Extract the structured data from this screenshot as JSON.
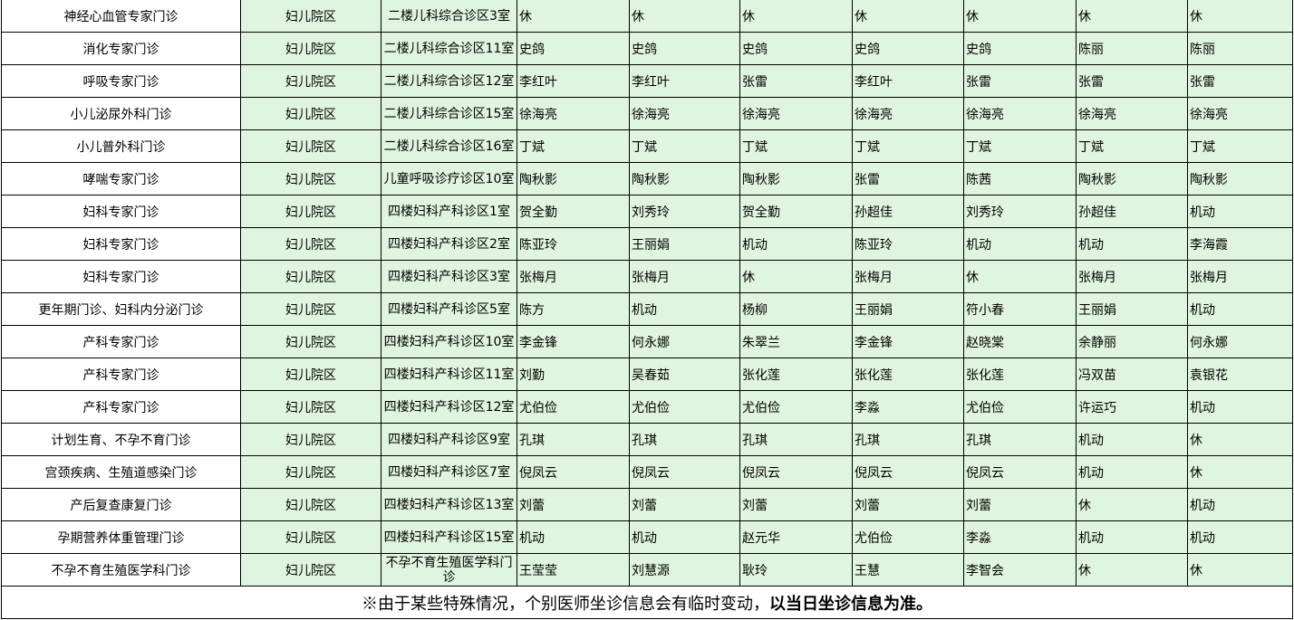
{
  "rows": [
    {
      "dept": "神经心血管专家门诊",
      "campus": "妇儿院区",
      "location": "二楼儿科综合诊区3室",
      "doctors": [
        "休",
        "休",
        "休",
        "休",
        "休",
        "休",
        "休"
      ]
    },
    {
      "dept": "消化专家门诊",
      "campus": "妇儿院区",
      "location": "二楼儿科综合诊区11室",
      "doctors": [
        "史鸽",
        "史鸽",
        "史鸽",
        "史鸽",
        "史鸽",
        "陈丽",
        "陈丽"
      ]
    },
    {
      "dept": "呼吸专家门诊",
      "campus": "妇儿院区",
      "location": "二楼儿科综合诊区12室",
      "doctors": [
        "李红叶",
        "李红叶",
        "张雷",
        "李红叶",
        "张雷",
        "张雷",
        "张雷"
      ]
    },
    {
      "dept": "小儿泌尿外科门诊",
      "campus": "妇儿院区",
      "location": "二楼儿科综合诊区15室",
      "doctors": [
        "徐海亮",
        "徐海亮",
        "徐海亮",
        "徐海亮",
        "徐海亮",
        "徐海亮",
        "徐海亮"
      ]
    },
    {
      "dept": "小儿普外科门诊",
      "campus": "妇儿院区",
      "location": "二楼儿科综合诊区16室",
      "doctors": [
        "丁斌",
        "丁斌",
        "丁斌",
        "丁斌",
        "丁斌",
        "丁斌",
        "丁斌"
      ]
    },
    {
      "dept": "哮喘专家门诊",
      "campus": "妇儿院区",
      "location": "儿童呼吸诊疗诊区10室",
      "doctors": [
        "陶秋影",
        "陶秋影",
        "陶秋影",
        "张雷",
        "陈茜",
        "陶秋影",
        "陶秋影"
      ]
    },
    {
      "dept": "妇科专家门诊",
      "campus": "妇儿院区",
      "location": "四楼妇科产科诊区1室",
      "doctors": [
        "贺全勤",
        "刘秀玲",
        "贺全勤",
        "孙超佳",
        "刘秀玲",
        "孙超佳",
        "机动"
      ]
    },
    {
      "dept": "妇科专家门诊",
      "campus": "妇儿院区",
      "location": "四楼妇科产科诊区2室",
      "doctors": [
        "陈亚玲",
        "王丽娟",
        "机动",
        "陈亚玲",
        "机动",
        "机动",
        "李海霞"
      ]
    },
    {
      "dept": "妇科专家门诊",
      "campus": "妇儿院区",
      "location": "四楼妇科产科诊区3室",
      "doctors": [
        "张梅月",
        "张梅月",
        "休",
        "张梅月",
        "休",
        "张梅月",
        "张梅月"
      ]
    },
    {
      "dept": "更年期门诊、妇科内分泌门诊",
      "campus": "妇儿院区",
      "location": "四楼妇科产科诊区5室",
      "doctors": [
        "陈方",
        "机动",
        "杨柳",
        "王丽娟",
        "符小春",
        "王丽娟",
        "机动"
      ]
    },
    {
      "dept": "产科专家门诊",
      "campus": "妇儿院区",
      "location": "四楼妇科产科诊区10室",
      "doctors": [
        "李金锋",
        "何永娜",
        "朱翠兰",
        "李金锋",
        "赵晓棠",
        "余静丽",
        "何永娜"
      ]
    },
    {
      "dept": "产科专家门诊",
      "campus": "妇儿院区",
      "location": "四楼妇科产科诊区11室",
      "doctors": [
        "刘勤",
        "吴春茹",
        "张化莲",
        "张化莲",
        "张化莲",
        "冯双苗",
        "袁银花"
      ]
    },
    {
      "dept": "产科专家门诊",
      "campus": "妇儿院区",
      "location": "四楼妇科产科诊区12室",
      "doctors": [
        "尤伯俭",
        "尤伯俭",
        "尤伯俭",
        "李淼",
        "尤伯俭",
        "许运巧",
        "机动"
      ]
    },
    {
      "dept": "计划生育、不孕不育门诊",
      "campus": "妇儿院区",
      "location": "四楼妇科产科诊区9室",
      "doctors": [
        "孔琪",
        "孔琪",
        "孔琪",
        "孔琪",
        "孔琪",
        "机动",
        "休"
      ]
    },
    {
      "dept": "宫颈疾病、生殖道感染门诊",
      "campus": "妇儿院区",
      "location": "四楼妇科产科诊区7室",
      "doctors": [
        "倪凤云",
        "倪凤云",
        "倪凤云",
        "倪凤云",
        "倪凤云",
        "机动",
        "休"
      ]
    },
    {
      "dept": "产后复查康复门诊",
      "campus": "妇儿院区",
      "location": "四楼妇科产科诊区13室",
      "doctors": [
        "刘蕾",
        "刘蕾",
        "刘蕾",
        "刘蕾",
        "刘蕾",
        "休",
        "机动"
      ]
    },
    {
      "dept": "孕期营养体重管理门诊",
      "campus": "妇儿院区",
      "location": "四楼妇科产科诊区15室",
      "doctors": [
        "机动",
        "机动",
        "赵元华",
        "尤伯俭",
        "李淼",
        "机动",
        "机动"
      ]
    },
    {
      "dept": "不孕不育生殖医学科门诊",
      "campus": "妇儿院区",
      "location": "不孕不育生殖医学科门诊",
      "doctors": [
        "王莹莹",
        "刘慧源",
        "耿玲",
        "王慧",
        "李智会",
        "休",
        "休"
      ]
    }
  ],
  "footer": {
    "note_regular": "※由于某些特殊情况，个别医师坐诊信息会有临时变动，",
    "note_bold": "以当日坐诊信息为准。"
  },
  "colors": {
    "cell_green": "#e0f5df",
    "border": "#000000"
  }
}
